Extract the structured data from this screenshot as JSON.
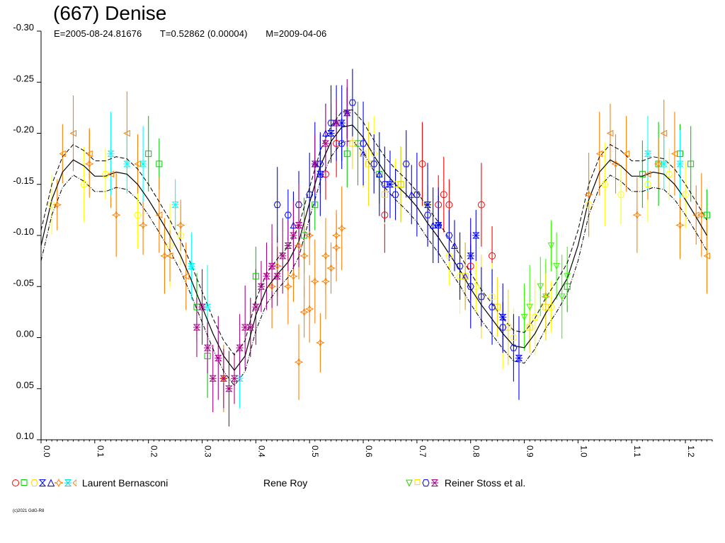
{
  "header": {
    "title": "(667) Denise",
    "epoch": "E=2005-08-24.81676",
    "period": "T=0.52862 (0.00004)",
    "model": "M=2009-04-06"
  },
  "legend": {
    "observer_1": "Laurent Bernasconi",
    "observer_2": "Rene Roy",
    "observer_3": "Reiner Stoss et al."
  },
  "footer": {
    "copyright": "(c)2021 GdG-R8"
  },
  "colors": {
    "red": "#ff0000",
    "green": "#00cc00",
    "yellow": "#ffff00",
    "blue": "#0000ff",
    "orange": "#ff8000",
    "cyan": "#00ffff",
    "purple": "#aa0088",
    "lime": "#33ff00",
    "gold": "#ffd800"
  },
  "chart_data": {
    "type": "scatter",
    "title": "(667) Denise",
    "xlim": [
      0.0,
      1.25
    ],
    "ylim": [
      -0.3,
      0.1
    ],
    "y_inverted": true,
    "x_ticks": [
      "0.0",
      "0.1",
      "0.2",
      "0.3",
      "0.4",
      "0.5",
      "0.6",
      "0.7",
      "0.8",
      "0.9",
      "1.0",
      "1.1",
      "1.2"
    ],
    "y_ticks": [
      "-0.30",
      "-0.25",
      "-0.20",
      "-0.15",
      "-0.10",
      "-0.05",
      "0.00",
      "0.05",
      "0.10"
    ],
    "model_curve": {
      "x": [
        0.0,
        0.02,
        0.04,
        0.06,
        0.08,
        0.1,
        0.12,
        0.14,
        0.16,
        0.18,
        0.2,
        0.22,
        0.24,
        0.26,
        0.28,
        0.3,
        0.32,
        0.34,
        0.36,
        0.38,
        0.4,
        0.42,
        0.44,
        0.46,
        0.48,
        0.5,
        0.52,
        0.54,
        0.56,
        0.58,
        0.6,
        0.62,
        0.64,
        0.66,
        0.68,
        0.7,
        0.72,
        0.74,
        0.76,
        0.78,
        0.8,
        0.82,
        0.84,
        0.86,
        0.88,
        0.9,
        0.92,
        0.94,
        0.96,
        0.98,
        1.0
      ],
      "y": [
        -0.09,
        -0.135,
        -0.162,
        -0.174,
        -0.168,
        -0.158,
        -0.158,
        -0.162,
        -0.16,
        -0.15,
        -0.135,
        -0.118,
        -0.1,
        -0.08,
        -0.056,
        -0.03,
        -0.004,
        0.018,
        0.032,
        0.018,
        -0.022,
        -0.048,
        -0.062,
        -0.074,
        -0.094,
        -0.132,
        -0.168,
        -0.192,
        -0.206,
        -0.208,
        -0.196,
        -0.178,
        -0.162,
        -0.15,
        -0.14,
        -0.128,
        -0.112,
        -0.098,
        -0.082,
        -0.066,
        -0.048,
        -0.032,
        -0.018,
        -0.004,
        0.008,
        0.01,
        -0.004,
        -0.024,
        -0.04,
        -0.058,
        -0.09
      ],
      "band": 0.015
    },
    "series": [
      {
        "name": "Laurent Bernasconi",
        "color": "#ff0000",
        "marker": "circle",
        "x": [
          0.53,
          0.55,
          0.71,
          0.74,
          0.75,
          0.76,
          0.8,
          0.82,
          0.84,
          0.64
        ],
        "y": [
          -0.16,
          -0.19,
          -0.17,
          -0.13,
          -0.14,
          -0.13,
          -0.07,
          -0.13,
          -0.08,
          -0.12
        ]
      },
      {
        "name": "Laurent Bernasconi",
        "color": "#00cc00",
        "marker": "square",
        "x": [
          0.2,
          0.22,
          0.29,
          0.31,
          0.4,
          0.49,
          0.51,
          0.57,
          0.59,
          0.63,
          0.67,
          0.98,
          1.12,
          1.15,
          1.19,
          1.21,
          1.24
        ],
        "y": [
          -0.18,
          -0.17,
          -0.03,
          0.018,
          -0.06,
          -0.1,
          -0.13,
          -0.18,
          -0.19,
          -0.16,
          -0.15,
          -0.05,
          -0.16,
          -0.17,
          -0.18,
          -0.17,
          -0.12
        ]
      },
      {
        "name": "Laurent Bernasconi",
        "color": "#ffff00",
        "marker": "hexagon",
        "x": [
          0.02,
          0.08,
          0.12,
          0.18,
          0.24,
          0.26,
          0.62,
          0.66,
          0.7,
          0.72,
          0.76,
          0.78,
          0.81,
          0.84,
          0.86,
          0.88,
          0.92,
          0.95,
          1.02,
          1.05,
          1.08,
          1.13,
          1.17,
          1.2
        ],
        "y": [
          -0.13,
          -0.15,
          -0.16,
          -0.12,
          -0.09,
          -0.1,
          -0.18,
          -0.15,
          -0.14,
          -0.13,
          -0.08,
          -0.06,
          -0.05,
          -0.04,
          -0.01,
          0.0,
          -0.02,
          -0.03,
          -0.13,
          -0.15,
          -0.14,
          -0.15,
          -0.16,
          -0.14
        ]
      },
      {
        "name": "Laurent Bernasconi",
        "color": "#0000ff",
        "marker": "hourglass",
        "x": [
          0.52,
          0.54,
          0.56,
          0.57,
          0.65,
          0.72,
          0.74,
          0.8,
          0.81,
          0.86,
          0.89
        ],
        "y": [
          -0.16,
          -0.2,
          -0.21,
          -0.22,
          -0.15,
          -0.13,
          -0.11,
          -0.08,
          -0.1,
          -0.02,
          0.02
        ]
      },
      {
        "name": "Laurent Bernasconi",
        "color": "#0000ff",
        "marker": "triangle-up",
        "x": [
          0.47,
          0.51,
          0.53,
          0.55,
          0.57,
          0.6,
          0.63,
          0.69,
          0.73,
          0.77,
          0.79
        ],
        "y": [
          -0.11,
          -0.17,
          -0.2,
          -0.21,
          -0.22,
          -0.18,
          -0.16,
          -0.14,
          -0.11,
          -0.09,
          -0.06
        ]
      },
      {
        "name": "Laurent Bernasconi",
        "color": "#ff8000",
        "marker": "diamond-star",
        "x": [
          0.03,
          0.09,
          0.14,
          0.19,
          0.23,
          0.26,
          0.34,
          0.43,
          0.44,
          0.46,
          0.47,
          0.48,
          0.49,
          0.5,
          0.53,
          0.55,
          0.94,
          1.02,
          1.07,
          1.11,
          1.15,
          1.19,
          1.23
        ],
        "y": [
          -0.13,
          -0.17,
          -0.12,
          -0.11,
          -0.08,
          -0.11,
          0.04,
          -0.05,
          -0.07,
          -0.05,
          -0.06,
          -0.09,
          -0.08,
          -0.1,
          -0.08,
          -0.1,
          -0.04,
          -0.14,
          -0.17,
          -0.12,
          -0.17,
          -0.11,
          -0.12
        ]
      },
      {
        "name": "Laurent Bernasconi",
        "color": "#ff8000",
        "marker": "diamond-star",
        "x": [
          0.48,
          0.49,
          0.5,
          0.51,
          0.52,
          0.53,
          0.54,
          0.55,
          0.56
        ],
        "y": [
          0.024,
          -0.025,
          -0.028,
          -0.055,
          0.005,
          -0.055,
          -0.068,
          -0.088,
          -0.107
        ]
      },
      {
        "name": "Laurent Bernasconi",
        "color": "#ff8000",
        "marker": "triangle-left",
        "x": [
          0.04,
          0.06,
          0.09,
          0.13,
          0.16,
          0.18,
          0.22,
          0.24,
          0.27,
          1.04,
          1.06,
          1.09,
          1.13,
          1.16,
          1.18,
          1.22,
          1.24
        ],
        "y": [
          -0.18,
          -0.2,
          -0.18,
          -0.16,
          -0.2,
          -0.17,
          -0.12,
          -0.08,
          -0.06,
          -0.18,
          -0.2,
          -0.18,
          -0.16,
          -0.2,
          -0.18,
          -0.12,
          -0.08
        ]
      },
      {
        "name": "Laurent Bernasconi",
        "color": "#00ffff",
        "marker": "hourglass",
        "x": [
          0.13,
          0.16,
          0.19,
          0.25,
          0.28,
          0.31,
          0.37,
          1.13,
          1.16,
          1.19
        ],
        "y": [
          -0.18,
          -0.17,
          -0.17,
          -0.13,
          -0.07,
          -0.03,
          0.04,
          -0.18,
          -0.17,
          -0.17
        ]
      },
      {
        "name": "Reiner Stoss et al.",
        "color": "#33ff00",
        "marker": "triangle-down",
        "x": [
          0.9,
          0.91,
          0.93,
          0.94,
          0.95,
          0.96,
          0.97,
          0.98
        ],
        "y": [
          -0.02,
          -0.03,
          -0.05,
          -0.04,
          -0.09,
          -0.07,
          -0.04,
          -0.06
        ]
      },
      {
        "name": "Reiner Stoss et al.",
        "color": "#ffd800",
        "marker": "square",
        "x": [
          0.58,
          0.6,
          0.61,
          0.64,
          0.67,
          0.7,
          0.79,
          0.82,
          0.85,
          0.87,
          0.91,
          0.94
        ],
        "y": [
          -0.19,
          -0.18,
          -0.17,
          -0.14,
          -0.15,
          -0.14,
          -0.06,
          -0.04,
          -0.03,
          -0.01,
          -0.01,
          -0.03
        ]
      },
      {
        "name": "Reiner Stoss et al.",
        "color": "#0000ff",
        "marker": "hexagon",
        "x": [
          0.44,
          0.46,
          0.48,
          0.5,
          0.52,
          0.54,
          0.56,
          0.58,
          0.6,
          0.62,
          0.64,
          0.66,
          0.68,
          0.7,
          0.72,
          0.74,
          0.76,
          0.78,
          0.8,
          0.82,
          0.84,
          0.86,
          0.88
        ],
        "y": [
          -0.13,
          -0.12,
          -0.13,
          -0.14,
          -0.17,
          -0.21,
          -0.19,
          -0.23,
          -0.19,
          -0.17,
          -0.15,
          -0.14,
          -0.17,
          -0.14,
          -0.12,
          -0.11,
          -0.1,
          -0.07,
          -0.05,
          -0.04,
          -0.03,
          -0.01,
          0.01
        ]
      },
      {
        "name": "Reiner Stoss et al.",
        "color": "#aa0088",
        "marker": "hourglass",
        "x": [
          0.29,
          0.3,
          0.31,
          0.32,
          0.33,
          0.34,
          0.35,
          0.36,
          0.37,
          0.38,
          0.39,
          0.4,
          0.41,
          0.42,
          0.43,
          0.44,
          0.45,
          0.46,
          0.47,
          0.48,
          0.51,
          0.53,
          0.55,
          0.57
        ],
        "y": [
          -0.01,
          -0.03,
          0.01,
          0.04,
          0.02,
          0.04,
          0.05,
          0.04,
          0.01,
          -0.01,
          -0.01,
          -0.03,
          -0.05,
          -0.06,
          -0.07,
          -0.06,
          -0.08,
          -0.09,
          -0.1,
          -0.11,
          -0.17,
          -0.19,
          -0.21,
          -0.22
        ]
      }
    ]
  }
}
